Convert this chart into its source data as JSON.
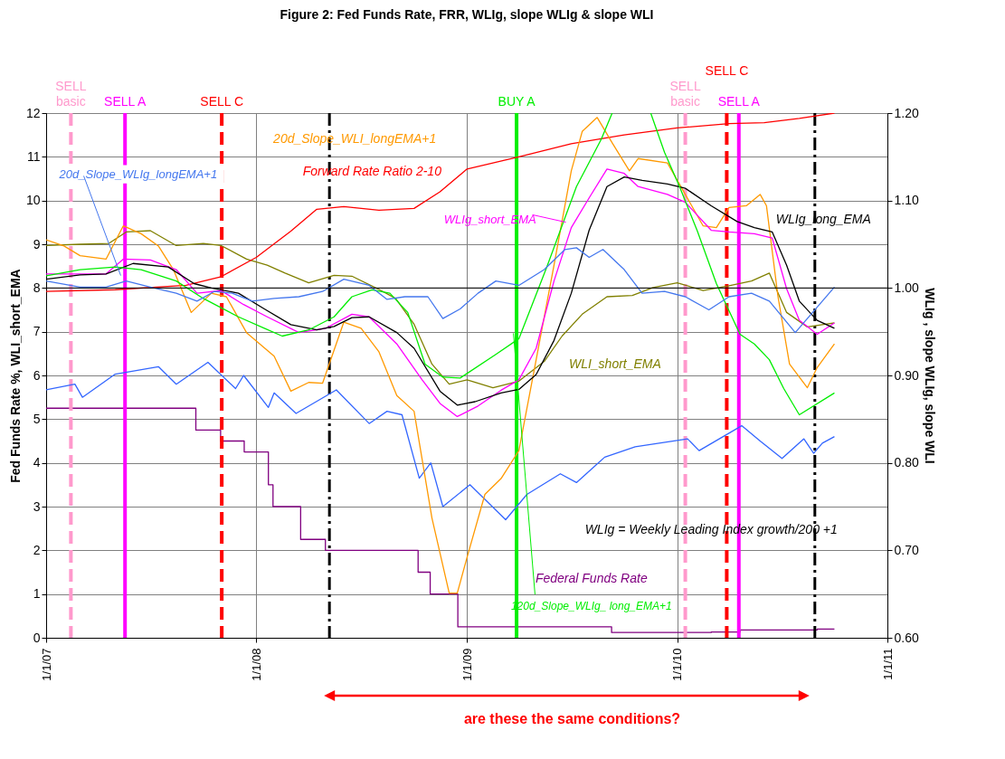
{
  "chart_data": {
    "type": "line",
    "title": "Figure 2:  Fed Funds Rate,  FRR,  WLIg,  slope WLIg  &  slope WLI",
    "ylabel": "Fed Funds Rate %,   WLI_short_EMA",
    "y2label": "WLIg ,  slope WLIg,   slope WLI",
    "xlim": [
      "2007-01-01",
      "2011-01-01"
    ],
    "xticks": [
      {
        "value": "2007-01-01",
        "label": "1/1/07"
      },
      {
        "value": "2008-01-01",
        "label": "1/1/08"
      },
      {
        "value": "2009-01-01",
        "label": "1/1/09"
      },
      {
        "value": "2010-01-01",
        "label": "1/1/10"
      },
      {
        "value": "2011-01-01",
        "label": "1/1/11"
      }
    ],
    "ylim": [
      0,
      12
    ],
    "yticks": [
      0,
      1,
      2,
      3,
      4,
      5,
      6,
      7,
      8,
      9,
      10,
      11,
      12
    ],
    "y2lim": [
      0.6,
      1.2
    ],
    "y2ticks": [
      {
        "value": 0.6,
        "label": "0.60"
      },
      {
        "value": 0.7,
        "label": "0.70"
      },
      {
        "value": 0.8,
        "label": "0.80"
      },
      {
        "value": 0.9,
        "label": "0.90"
      },
      {
        "value": 1.0,
        "label": "1.00"
      },
      {
        "value": 1.1,
        "label": "1.10"
      },
      {
        "value": 1.2,
        "label": "1.20"
      }
    ],
    "grid": true,
    "series": [
      {
        "name": "Federal Funds Rate",
        "type": "step",
        "color": "#800080",
        "x": [
          "2007-01-01",
          "2007-09-18",
          "2007-10-31",
          "2007-12-11",
          "2008-01-22",
          "2008-01-30",
          "2008-03-18",
          "2008-04-30",
          "2008-10-08",
          "2008-10-29",
          "2008-12-16",
          "2009-09-09",
          "2010-03-01",
          "2010-04-20",
          "2010-09-01",
          "2010-10-01"
        ],
        "values": [
          5.25,
          4.75,
          4.5,
          4.25,
          3.5,
          3.0,
          2.25,
          2.0,
          1.5,
          1.0,
          0.25,
          0.12,
          0.13,
          0.18,
          0.2,
          0.2
        ]
      },
      {
        "color": "#3366ff",
        "x": [
          "2007-01-01",
          "2007-02-20",
          "2007-03-05",
          "2007-05-01",
          "2007-07-15",
          "2007-08-15",
          "2007-10-09",
          "2007-11-26",
          "2007-12-10",
          "2008-01-22",
          "2008-02-01",
          "2008-03-10",
          "2008-05-19",
          "2008-07-15",
          "2008-08-15",
          "2008-09-10",
          "2008-10-10",
          "2008-10-30",
          "2008-11-20",
          "2009-01-06",
          "2009-03-09",
          "2009-04-15",
          "2009-06-12",
          "2009-07-10",
          "2009-08-28",
          "2009-10-20",
          "2010-01-19",
          "2010-02-08",
          "2010-04-23",
          "2010-05-25",
          "2010-07-02",
          "2010-08-09",
          "2010-08-26",
          "2010-09-10",
          "2010-10-01"
        ],
        "values": [
          5.67,
          5.8,
          5.5,
          6.03,
          6.2,
          5.8,
          6.3,
          5.7,
          6.0,
          5.27,
          5.6,
          5.13,
          5.67,
          4.9,
          5.18,
          5.1,
          3.65,
          4.0,
          3.0,
          3.5,
          2.7,
          3.28,
          3.75,
          3.55,
          4.13,
          4.37,
          4.55,
          4.28,
          4.85,
          4.5,
          4.1,
          4.55,
          4.22,
          4.45,
          4.6
        ]
      },
      {
        "name": "WLI_short_EMA",
        "color": "#808000",
        "x": [
          "2007-01-01",
          "2007-03-01",
          "2007-04-20",
          "2007-05-20",
          "2007-07-01",
          "2007-08-15",
          "2007-10-01",
          "2007-11-01",
          "2007-12-15",
          "2008-01-20",
          "2008-02-20",
          "2008-04-01",
          "2008-05-15",
          "2008-06-15",
          "2008-07-30",
          "2008-08-30",
          "2008-10-01",
          "2008-11-01",
          "2008-12-01",
          "2009-01-01",
          "2009-02-15",
          "2009-04-01",
          "2009-05-15",
          "2009-06-15",
          "2009-07-20",
          "2009-09-01",
          "2009-10-15",
          "2009-11-20",
          "2010-01-01",
          "2010-02-15",
          "2010-04-01",
          "2010-05-10",
          "2010-06-10",
          "2010-07-10",
          "2010-08-15",
          "2010-09-15",
          "2010-10-01"
        ],
        "values": [
          8.97,
          9.0,
          9.02,
          9.28,
          9.31,
          8.97,
          9.02,
          8.97,
          8.66,
          8.52,
          8.34,
          8.12,
          8.29,
          8.27,
          7.98,
          7.76,
          7.17,
          6.26,
          5.8,
          5.9,
          5.72,
          5.87,
          6.32,
          6.9,
          7.4,
          7.8,
          7.83,
          8.01,
          8.12,
          7.94,
          8.05,
          8.16,
          8.34,
          7.44,
          7.11,
          7.17,
          7.2
        ]
      },
      {
        "name": "Forward Rate Ratio 2-10",
        "color": "#ff0000",
        "axis": "y2",
        "x": [
          "2007-01-01",
          "2007-05-01",
          "2007-09-01",
          "2007-11-01",
          "2008-01-01",
          "2008-03-01",
          "2008-04-15",
          "2008-06-01",
          "2008-08-01",
          "2008-10-01",
          "2008-11-15",
          "2009-01-01",
          "2009-04-01",
          "2009-07-01",
          "2009-10-01",
          "2010-01-01",
          "2010-04-01",
          "2010-06-01",
          "2010-08-01",
          "2010-10-01"
        ],
        "values": [
          0.996,
          0.998,
          1.003,
          1.013,
          1.035,
          1.065,
          1.09,
          1.093,
          1.089,
          1.091,
          1.11,
          1.136,
          1.15,
          1.165,
          1.175,
          1.183,
          1.188,
          1.189,
          1.194,
          1.2
        ]
      },
      {
        "name": "20d_Slope_WLI_longEMA+1",
        "color": "#ff9900",
        "axis": "y2",
        "x": [
          "2007-01-01",
          "2007-02-01",
          "2007-03-01",
          "2007-04-15",
          "2007-05-15",
          "2007-06-15",
          "2007-07-15",
          "2007-08-10",
          "2007-09-10",
          "2007-10-15",
          "2007-11-10",
          "2007-12-15",
          "2008-02-01",
          "2008-03-01",
          "2008-04-01",
          "2008-04-25",
          "2008-06-01",
          "2008-07-01",
          "2008-08-01",
          "2008-09-01",
          "2008-10-01",
          "2008-11-01",
          "2008-12-01",
          "2008-12-15",
          "2009-01-01",
          "2009-02-01",
          "2009-03-01",
          "2009-04-01",
          "2009-05-01",
          "2009-06-01",
          "2009-07-01",
          "2009-07-20",
          "2009-08-15",
          "2009-09-10",
          "2009-10-10",
          "2009-10-25",
          "2009-12-15",
          "2010-01-15",
          "2010-02-15",
          "2010-03-10",
          "2010-04-01",
          "2010-05-01",
          "2010-05-25",
          "2010-06-05",
          "2010-06-25",
          "2010-07-15",
          "2010-08-15",
          "2010-09-01",
          "2010-10-01"
        ],
        "values": [
          1.055,
          1.048,
          1.037,
          1.033,
          1.071,
          1.062,
          1.048,
          1.021,
          0.972,
          0.994,
          0.99,
          0.949,
          0.922,
          0.882,
          0.892,
          0.891,
          0.961,
          0.954,
          0.927,
          0.877,
          0.859,
          0.737,
          0.651,
          0.651,
          0.692,
          0.764,
          0.782,
          0.814,
          0.918,
          1.026,
          1.134,
          1.179,
          1.195,
          1.166,
          1.134,
          1.148,
          1.143,
          1.107,
          1.071,
          1.069,
          1.092,
          1.094,
          1.107,
          1.094,
          0.99,
          0.913,
          0.886,
          0.909,
          0.936
        ]
      },
      {
        "name": "WLIg_short_EMA",
        "color": "#ff00ff",
        "axis": "y2",
        "x": [
          "2007-01-01",
          "2007-04-15",
          "2007-05-15",
          "2007-07-01",
          "2007-08-15",
          "2007-09-20",
          "2007-11-01",
          "2007-12-10",
          "2008-01-20",
          "2008-03-15",
          "2008-05-01",
          "2008-06-15",
          "2008-07-15",
          "2008-09-01",
          "2008-10-15",
          "2008-11-15",
          "2008-12-15",
          "2009-01-20",
          "2009-03-01",
          "2009-04-01",
          "2009-05-01",
          "2009-06-01",
          "2009-07-01",
          "2009-08-01",
          "2009-09-01",
          "2009-10-01",
          "2009-10-25",
          "2009-12-15",
          "2010-01-15",
          "2010-03-01",
          "2010-04-01",
          "2010-05-15",
          "2010-06-15",
          "2010-07-10",
          "2010-08-01",
          "2010-09-01",
          "2010-10-01"
        ],
        "values": [
          1.016,
          1.016,
          1.033,
          1.032,
          1.021,
          0.994,
          0.997,
          0.981,
          0.967,
          0.949,
          0.954,
          0.97,
          0.967,
          0.936,
          0.895,
          0.868,
          0.853,
          0.865,
          0.883,
          0.895,
          0.931,
          1.008,
          1.069,
          1.103,
          1.136,
          1.131,
          1.116,
          1.107,
          1.098,
          1.066,
          1.064,
          1.062,
          1.057,
          0.999,
          0.963,
          0.947,
          0.96
        ]
      },
      {
        "name": "WLIg_long_EMA",
        "color": "#000000",
        "axis": "y2",
        "x": [
          "2007-01-01",
          "2007-03-01",
          "2007-04-15",
          "2007-06-01",
          "2007-08-01",
          "2007-09-15",
          "2007-10-15",
          "2007-12-01",
          "2008-01-15",
          "2008-03-01",
          "2008-04-15",
          "2008-05-15",
          "2008-06-15",
          "2008-07-15",
          "2008-09-01",
          "2008-10-01",
          "2008-11-15",
          "2008-12-15",
          "2009-01-15",
          "2009-03-01",
          "2009-04-01",
          "2009-05-01",
          "2009-06-01",
          "2009-07-01",
          "2009-08-01",
          "2009-09-01",
          "2009-10-01",
          "2009-11-01",
          "2009-12-15",
          "2010-01-15",
          "2010-03-01",
          "2010-04-15",
          "2010-05-15",
          "2010-06-15",
          "2010-07-10",
          "2010-08-01",
          "2010-09-01",
          "2010-10-01"
        ],
        "values": [
          1.01,
          1.015,
          1.016,
          1.028,
          1.024,
          1.005,
          1.0,
          0.994,
          0.976,
          0.958,
          0.952,
          0.956,
          0.966,
          0.967,
          0.949,
          0.931,
          0.882,
          0.866,
          0.87,
          0.88,
          0.884,
          0.901,
          0.94,
          0.994,
          1.066,
          1.116,
          1.127,
          1.123,
          1.119,
          1.114,
          1.094,
          1.076,
          1.069,
          1.064,
          1.026,
          0.985,
          0.963,
          0.954
        ]
      },
      {
        "name": "120d_Slope_WLIg_ long_EMA+1",
        "color": "#00ee00",
        "axis": "y2",
        "x": [
          "2007-01-01",
          "2007-03-01",
          "2007-05-01",
          "2007-06-15",
          "2007-08-15",
          "2007-10-01",
          "2007-12-01",
          "2008-01-15",
          "2008-02-15",
          "2008-04-01",
          "2008-05-15",
          "2008-06-15",
          "2008-07-20",
          "2008-08-20",
          "2008-09-20",
          "2008-10-20",
          "2008-11-20",
          "2008-12-20",
          "2009-02-20",
          "2009-04-01",
          "2009-05-19",
          "2009-07-10",
          "2009-08-22",
          "2009-09-10",
          "2009-10-15",
          "2009-11-16",
          "2009-12-10",
          "2010-01-05",
          "2010-02-05",
          "2010-03-10",
          "2010-04-20",
          "2010-05-15",
          "2010-06-10",
          "2010-07-05",
          "2010-08-01",
          "2010-10-01"
        ],
        "values": [
          1.014,
          1.021,
          1.024,
          1.021,
          1.008,
          0.988,
          0.967,
          0.954,
          0.945,
          0.952,
          0.967,
          0.99,
          0.998,
          0.994,
          0.972,
          0.913,
          0.898,
          0.897,
          0.924,
          0.942,
          1.023,
          1.116,
          1.17,
          1.2,
          null,
          1.2,
          1.155,
          1.116,
          1.065,
          1.005,
          0.947,
          0.936,
          0.918,
          0.885,
          0.855,
          0.88
        ]
      },
      {
        "name": "20d_Slope_WLIg_longEMA+1",
        "color": "#4477ee",
        "axis": "y2",
        "x": [
          "2007-01-01",
          "2007-03-01",
          "2007-04-15",
          "2007-05-20",
          "2007-07-01",
          "2007-08-15",
          "2007-09-20",
          "2007-10-20",
          "2007-11-20",
          "2007-12-25",
          "2008-02-01",
          "2008-03-15",
          "2008-04-25",
          "2008-06-01",
          "2008-07-15",
          "2008-08-15",
          "2008-09-15",
          "2008-10-25",
          "2008-11-20",
          "2008-12-20",
          "2009-01-20",
          "2009-02-20",
          "2009-04-01",
          "2009-05-15",
          "2009-06-20",
          "2009-07-10",
          "2009-08-01",
          "2009-08-25",
          "2009-10-01",
          "2009-11-01",
          "2009-12-10",
          "2010-01-15",
          "2010-02-25",
          "2010-04-01",
          "2010-05-10",
          "2010-06-10",
          "2010-07-25",
          "2010-10-01"
        ],
        "values": [
          1.008,
          1.001,
          1.001,
          1.008,
          1.001,
          0.994,
          0.985,
          0.996,
          0.994,
          0.985,
          0.988,
          0.99,
          0.996,
          1.01,
          1.003,
          0.987,
          0.99,
          0.99,
          0.965,
          0.976,
          0.994,
          1.008,
          1.003,
          1.021,
          1.044,
          1.046,
          1.035,
          1.044,
          1.021,
          0.994,
          0.996,
          0.99,
          0.975,
          0.99,
          0.994,
          0.985,
          0.949,
          1.001
        ]
      }
    ],
    "ref_lines": [
      {
        "axis": "x",
        "value": "2007-02-13",
        "label": "SELL\nbasic",
        "color": "#ff99cc",
        "line_style": "dashed"
      },
      {
        "axis": "x",
        "value": "2007-05-18",
        "label": "SELL A",
        "color": "#ff00ff",
        "line_style": "solid"
      },
      {
        "axis": "x",
        "value": "2007-11-02",
        "label": "SELL C",
        "color": "#ff0000",
        "line_style": "dashed"
      },
      {
        "axis": "x",
        "value": "2008-05-07",
        "color": "#000000",
        "line_style": "dashdot"
      },
      {
        "axis": "x",
        "value": "2009-03-28",
        "label": "BUY A",
        "color": "#00ee00",
        "line_style": "solid"
      },
      {
        "axis": "x",
        "value": "2010-01-15",
        "label": "SELL\nbasic",
        "color": "#ff99cc",
        "line_style": "dashed"
      },
      {
        "axis": "x",
        "value": "2010-03-28",
        "label": "SELL C",
        "color": "#ff0000",
        "line_style": "dashed"
      },
      {
        "axis": "x",
        "value": "2010-04-18",
        "label": "SELL A",
        "color": "#ff00ff",
        "line_style": "solid"
      },
      {
        "axis": "x",
        "value": "2010-08-28",
        "color": "#000000",
        "line_style": "dashdot"
      },
      {
        "axis": "y2",
        "value": 1.0,
        "color": "#000000",
        "line_style": "solid"
      }
    ],
    "annotations": [
      "WLIg = Weekly Leading Index growth/200 +1",
      "are these the same conditions?"
    ]
  }
}
